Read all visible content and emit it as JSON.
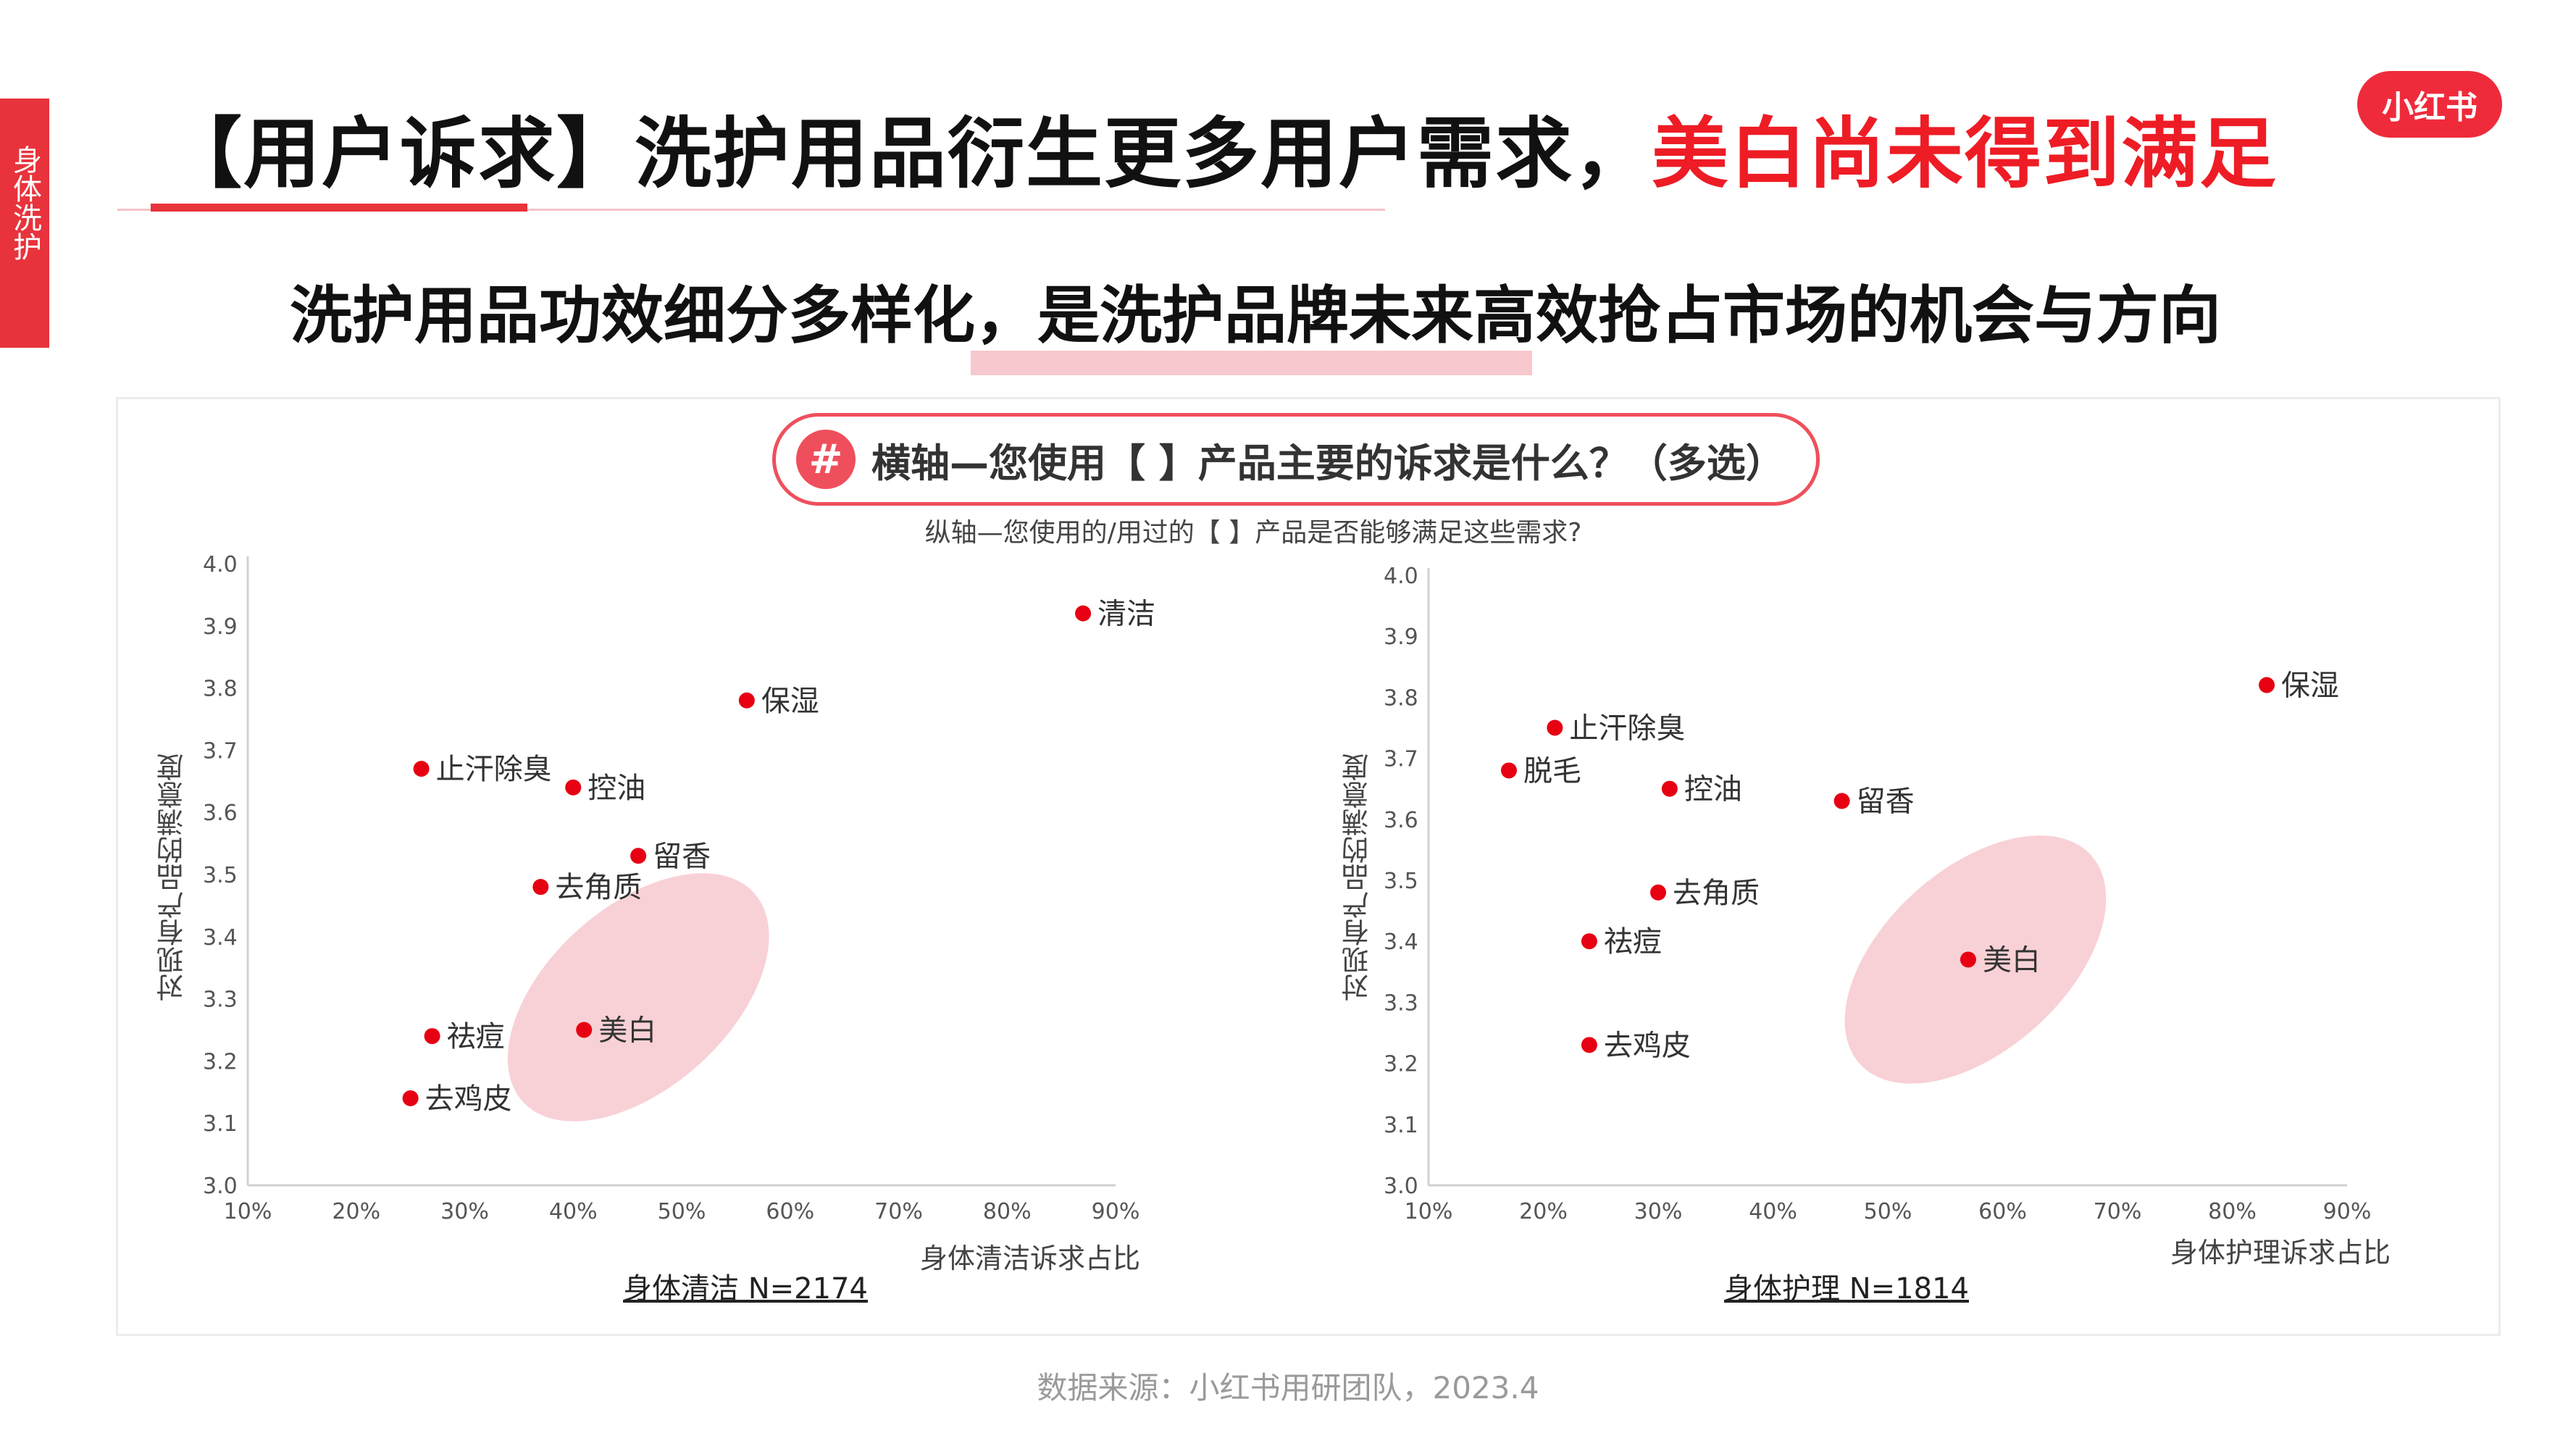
{
  "side_tab": "身体洗护",
  "title": {
    "main": "【用户诉求】洗护用品衍生更多用户需求，",
    "highlight": "美白尚未得到满足"
  },
  "subtitle": "洗护用品功效细分多样化，是洗护品牌未来高效抢占市场的机会与方向",
  "logo": "小红书",
  "question": {
    "hash": "#",
    "text": "横轴—您使用【 】产品主要的诉求是什么？（多选）"
  },
  "y_question": "纵轴—您使用的/用过的【 】产品是否能够满足这些需求?",
  "source": "数据来源：小红书用研团队，2023.4",
  "colors": {
    "accent": "#e8333c",
    "point": "#e60012",
    "ellipse": "#f7c9cf"
  },
  "chart_data": [
    {
      "type": "scatter",
      "caption": "身体清洁 N=2174",
      "xlabel": "身体清洁诉求占比",
      "ylabel": "对现有产品的满意度",
      "xlim": [
        0.1,
        0.9
      ],
      "ylim": [
        3.0,
        4.0
      ],
      "x_ticks": [
        "10%",
        "20%",
        "30%",
        "40%",
        "50%",
        "60%",
        "70%",
        "80%",
        "90%"
      ],
      "y_ticks": [
        "3.0",
        "3.1",
        "3.2",
        "3.3",
        "3.4",
        "3.5",
        "3.6",
        "3.7",
        "3.8",
        "3.9",
        "4.0"
      ],
      "points": [
        {
          "label": "清洁",
          "x": 0.87,
          "y": 3.92
        },
        {
          "label": "保湿",
          "x": 0.56,
          "y": 3.78
        },
        {
          "label": "止汗除臭",
          "x": 0.26,
          "y": 3.67
        },
        {
          "label": "控油",
          "x": 0.4,
          "y": 3.64
        },
        {
          "label": "留香",
          "x": 0.46,
          "y": 3.53
        },
        {
          "label": "去角质",
          "x": 0.37,
          "y": 3.48
        },
        {
          "label": "美白",
          "x": 0.41,
          "y": 3.25
        },
        {
          "label": "祛痘",
          "x": 0.27,
          "y": 3.24
        },
        {
          "label": "去鸡皮",
          "x": 0.25,
          "y": 3.14
        }
      ],
      "highlight": "美白"
    },
    {
      "type": "scatter",
      "caption": "身体护理 N=1814",
      "xlabel": "身体护理诉求占比",
      "ylabel": "对现有产品的满意度",
      "xlim": [
        0.1,
        0.9
      ],
      "ylim": [
        3.0,
        4.0
      ],
      "x_ticks": [
        "10%",
        "20%",
        "30%",
        "40%",
        "50%",
        "60%",
        "70%",
        "80%",
        "90%"
      ],
      "y_ticks": [
        "3.0",
        "3.1",
        "3.2",
        "3.3",
        "3.4",
        "3.5",
        "3.6",
        "3.7",
        "3.8",
        "3.9",
        "4.0"
      ],
      "points": [
        {
          "label": "保湿",
          "x": 0.83,
          "y": 3.82
        },
        {
          "label": "止汗除臭",
          "x": 0.21,
          "y": 3.75
        },
        {
          "label": "脱毛",
          "x": 0.17,
          "y": 3.68
        },
        {
          "label": "控油",
          "x": 0.31,
          "y": 3.65
        },
        {
          "label": "留香",
          "x": 0.46,
          "y": 3.63
        },
        {
          "label": "去角质",
          "x": 0.3,
          "y": 3.48
        },
        {
          "label": "美白",
          "x": 0.57,
          "y": 3.37
        },
        {
          "label": "祛痘",
          "x": 0.24,
          "y": 3.4
        },
        {
          "label": "去鸡皮",
          "x": 0.24,
          "y": 3.23
        }
      ],
      "highlight": "美白"
    }
  ]
}
